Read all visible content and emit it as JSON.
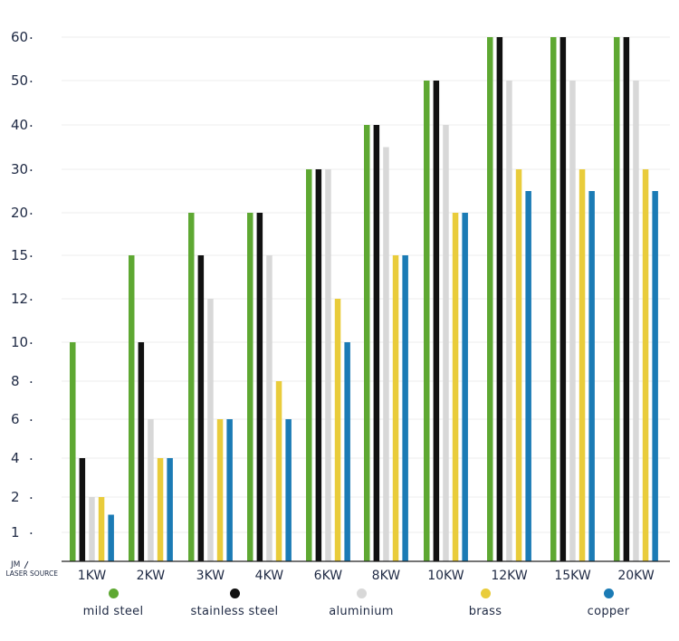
{
  "chart_data": {
    "type": "bar",
    "unit_label": {
      "top": "JM",
      "bottom": "LASER SOURCE"
    },
    "categories": [
      "1KW",
      "2KW",
      "3KW",
      "4KW",
      "6KW",
      "8KW",
      "10KW",
      "12KW",
      "15KW",
      "20KW"
    ],
    "y_ticks": [
      "1",
      "2",
      "4",
      "6",
      "8",
      "10",
      "12",
      "15",
      "20",
      "30",
      "40",
      "50",
      "60"
    ],
    "series": [
      {
        "name": "mild steel",
        "color": "#5ea832",
        "values": [
          10,
          15,
          20,
          20,
          30,
          40,
          50,
          60,
          60,
          60
        ]
      },
      {
        "name": "stainless steel",
        "color": "#111111",
        "values": [
          4,
          10,
          15,
          20,
          30,
          40,
          50,
          60,
          60,
          60
        ]
      },
      {
        "name": "aluminium",
        "color": "#d8d8d8",
        "values": [
          2,
          6,
          12,
          15,
          30,
          35,
          40,
          50,
          50,
          50
        ]
      },
      {
        "name": "brass",
        "color": "#e9cc3b",
        "values": [
          2,
          4,
          6,
          8,
          12,
          15,
          20,
          30,
          30,
          30
        ]
      },
      {
        "name": "copper",
        "color": "#1b7bb5",
        "values": [
          1.5,
          4,
          6,
          6,
          10,
          15,
          20,
          25,
          25,
          25
        ]
      }
    ]
  }
}
